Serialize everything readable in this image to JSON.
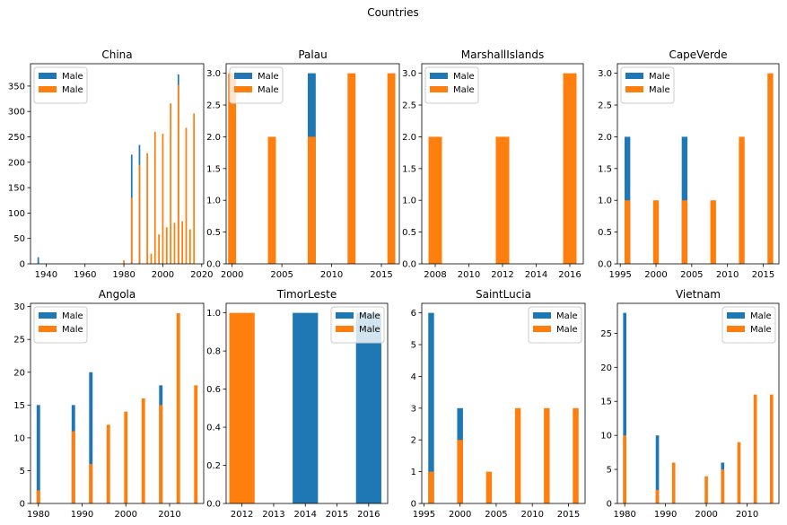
{
  "figure": {
    "suptitle": "Countries"
  },
  "colors": {
    "male_a": "#1f77b4",
    "male_b": "#ff7f0e"
  },
  "chart_data": [
    {
      "type": "bar",
      "title": "China",
      "legend": "upper left",
      "xlim": [
        1932,
        2021
      ],
      "ylim": [
        0,
        394
      ],
      "barwidth": 0.8,
      "xticks": [
        1940,
        1960,
        1980,
        2000,
        2020
      ],
      "yticks": [
        0,
        50,
        100,
        150,
        200,
        250,
        300,
        350
      ],
      "series": [
        {
          "name": "Male",
          "color": "#1f77b4",
          "x": [
            1936,
            1984,
            1988,
            2008
          ],
          "y": [
            13,
            215,
            234,
            373
          ]
        },
        {
          "name": "Male",
          "color": "#ff7f0e",
          "x": [
            1980,
            1984,
            1988,
            1992,
            1994,
            1996,
            1998,
            2000,
            2002,
            2004,
            2006,
            2008,
            2010,
            2012,
            2014,
            2016
          ],
          "y": [
            7,
            130,
            195,
            218,
            20,
            260,
            58,
            256,
            72,
            316,
            81,
            352,
            84,
            268,
            68,
            296
          ]
        }
      ]
    },
    {
      "type": "bar",
      "title": "Palau",
      "legend": "upper left",
      "xlim": [
        1999.4,
        2016.8
      ],
      "ylim": [
        0,
        3.15
      ],
      "barwidth": 0.8,
      "xticks": [
        2000,
        2005,
        2010,
        2015
      ],
      "yticks": [
        "0.0",
        "0.5",
        "1.0",
        "1.5",
        "2.0",
        "2.5",
        "3.0"
      ],
      "series": [
        {
          "name": "Male",
          "color": "#1f77b4",
          "x": [
            2008
          ],
          "y": [
            3
          ]
        },
        {
          "name": "Male",
          "color": "#ff7f0e",
          "x": [
            2000,
            2004,
            2008,
            2012,
            2016
          ],
          "y": [
            3,
            2,
            2,
            3,
            3
          ]
        }
      ]
    },
    {
      "type": "bar",
      "title": "MarshallIslands",
      "legend": "upper left",
      "xlim": [
        2007.2,
        2016.8
      ],
      "ylim": [
        0,
        3.15
      ],
      "barwidth": 0.8,
      "xticks": [
        2008,
        2010,
        2012,
        2014,
        2016
      ],
      "yticks": [
        "0.0",
        "0.5",
        "1.0",
        "1.5",
        "2.0",
        "2.5",
        "3.0"
      ],
      "series": [
        {
          "name": "Male",
          "color": "#1f77b4",
          "x": [],
          "y": []
        },
        {
          "name": "Male",
          "color": "#ff7f0e",
          "x": [
            2008,
            2012,
            2016
          ],
          "y": [
            2,
            2,
            3
          ]
        }
      ]
    },
    {
      "type": "bar",
      "title": "CapeVerde",
      "legend": "upper left",
      "xlim": [
        1994.6,
        2017.2
      ],
      "ylim": [
        0,
        3.15
      ],
      "barwidth": 0.8,
      "xticks": [
        1995,
        2000,
        2005,
        2010,
        2015
      ],
      "yticks": [
        "0.0",
        "0.5",
        "1.0",
        "1.5",
        "2.0",
        "2.5",
        "3.0"
      ],
      "series": [
        {
          "name": "Male",
          "color": "#1f77b4",
          "x": [
            1996,
            2004
          ],
          "y": [
            2,
            2
          ]
        },
        {
          "name": "Male",
          "color": "#ff7f0e",
          "x": [
            1996,
            2000,
            2004,
            2008,
            2012,
            2016
          ],
          "y": [
            1,
            1,
            1,
            1,
            2,
            3
          ]
        }
      ]
    },
    {
      "type": "bar",
      "title": "Angola",
      "legend": "upper left",
      "xlim": [
        1978.2,
        2017.8
      ],
      "ylim": [
        0,
        30.5
      ],
      "barwidth": 0.8,
      "xticks": [
        1980,
        1990,
        2000,
        2010
      ],
      "yticks": [
        0,
        5,
        10,
        15,
        20,
        25,
        30
      ],
      "series": [
        {
          "name": "Male",
          "color": "#1f77b4",
          "x": [
            1980,
            1988,
            1992,
            2008
          ],
          "y": [
            15,
            15,
            20,
            18
          ]
        },
        {
          "name": "Male",
          "color": "#ff7f0e",
          "x": [
            1980,
            1988,
            1992,
            1996,
            2000,
            2004,
            2008,
            2012,
            2016
          ],
          "y": [
            2,
            11,
            6,
            12,
            14,
            16,
            15,
            29,
            18
          ]
        }
      ]
    },
    {
      "type": "bar",
      "title": "TimorLeste",
      "legend": "upper right",
      "xlim": [
        2011.5,
        2016.6
      ],
      "ylim": [
        0,
        1.05
      ],
      "barwidth": 0.8,
      "xticks": [
        2012,
        2013,
        2014,
        2015,
        2016
      ],
      "yticks": [
        "0.0",
        "0.2",
        "0.4",
        "0.6",
        "0.8",
        "1.0"
      ],
      "series": [
        {
          "name": "Male",
          "color": "#1f77b4",
          "x": [
            2014,
            2016
          ],
          "y": [
            1,
            1
          ]
        },
        {
          "name": "Male",
          "color": "#ff7f0e",
          "x": [
            2012
          ],
          "y": [
            1
          ]
        }
      ]
    },
    {
      "type": "bar",
      "title": "SaintLucia",
      "legend": "upper right",
      "xlim": [
        1994.7,
        2017.3
      ],
      "ylim": [
        0,
        6.3
      ],
      "barwidth": 0.8,
      "xticks": [
        1995,
        2000,
        2005,
        2010,
        2015
      ],
      "yticks": [
        0,
        1,
        2,
        3,
        4,
        5,
        6
      ],
      "series": [
        {
          "name": "Male",
          "color": "#1f77b4",
          "x": [
            1996,
            2000
          ],
          "y": [
            6,
            3
          ]
        },
        {
          "name": "Male",
          "color": "#ff7f0e",
          "x": [
            1996,
            2000,
            2004,
            2008,
            2012,
            2016
          ],
          "y": [
            1,
            2,
            1,
            3,
            3,
            3
          ]
        }
      ]
    },
    {
      "type": "bar",
      "title": "Vietnam",
      "legend": "upper right",
      "xlim": [
        1978.2,
        2017.8
      ],
      "ylim": [
        0,
        29.4
      ],
      "barwidth": 0.8,
      "xticks": [
        1980,
        1990,
        2000,
        2010
      ],
      "yticks": [
        0,
        5,
        10,
        15,
        20,
        25
      ],
      "series": [
        {
          "name": "Male",
          "color": "#1f77b4",
          "x": [
            1980,
            1988,
            2004
          ],
          "y": [
            28,
            10,
            6
          ]
        },
        {
          "name": "Male",
          "color": "#ff7f0e",
          "x": [
            1980,
            1988,
            1992,
            2000,
            2004,
            2008,
            2012,
            2016
          ],
          "y": [
            10,
            2,
            6,
            4,
            5,
            9,
            16,
            16
          ]
        }
      ]
    }
  ]
}
